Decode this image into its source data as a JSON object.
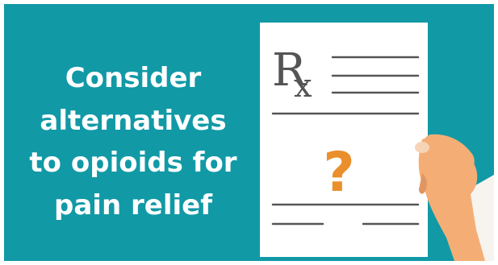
{
  "headline": {
    "lines": [
      "Consider",
      "alternatives",
      "to opioids for",
      "pain relief"
    ]
  },
  "prescription": {
    "symbol": "R",
    "symbol_subscript": "x",
    "mark": "?"
  },
  "colors": {
    "background": "#1199a6",
    "paper": "#ffffff",
    "ink": "#555555",
    "question_mark": "#e98f2c",
    "skin": "#f4ae75",
    "skin_shadow": "#e19563",
    "sleeve": "#f7f3ee"
  },
  "icons": {
    "paper": "prescription-paper",
    "hand": "hand-holding-paper"
  }
}
